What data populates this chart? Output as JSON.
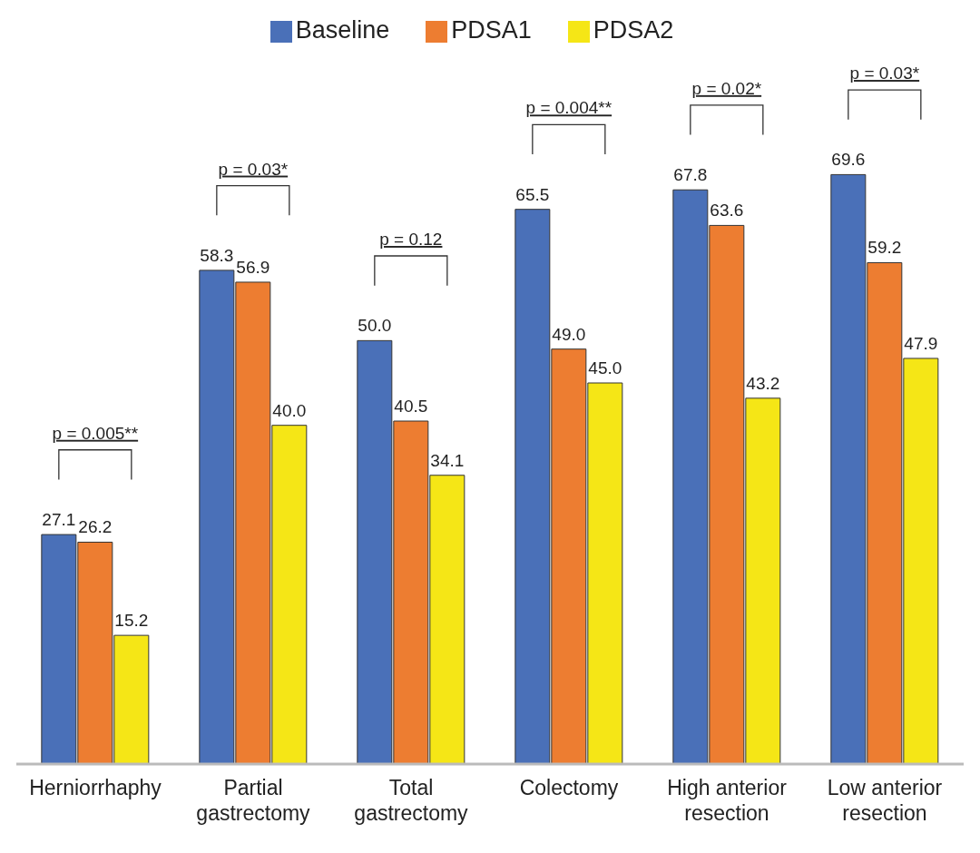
{
  "chart_data": {
    "type": "bar",
    "categories": [
      "Herniorrhaphy",
      "Partial gastrectomy",
      "Total gastrectomy",
      "Colectomy",
      "High anterior resection",
      "Low anterior resection"
    ],
    "series": [
      {
        "name": "Baseline",
        "color": "#4a70b8",
        "values": [
          27.1,
          58.3,
          50.0,
          65.5,
          67.8,
          69.6
        ],
        "value_labels": [
          "27.1",
          "58.3",
          "50.0",
          "65.5",
          "67.8",
          "69.6"
        ]
      },
      {
        "name": "PDSA1",
        "color": "#ed7d31",
        "values": [
          26.2,
          56.9,
          40.5,
          49.0,
          63.6,
          59.2
        ],
        "value_labels": [
          "26.2",
          "56.9",
          "40.5",
          "49.0",
          "63.6",
          "59.2"
        ]
      },
      {
        "name": "PDSA2",
        "color": "#f5e616",
        "values": [
          15.2,
          40.0,
          34.1,
          45.0,
          43.2,
          47.9
        ],
        "value_labels": [
          "15.2",
          "40.0",
          "34.1",
          "45.0",
          "43.2",
          "47.9"
        ]
      }
    ],
    "legend": "top",
    "grid": false,
    "annotations": [
      "p = 0.005**",
      "p = 0.03*",
      "p = 0.12",
      "p = 0.004**",
      "p = 0.02*",
      "p = 0.03*"
    ]
  }
}
